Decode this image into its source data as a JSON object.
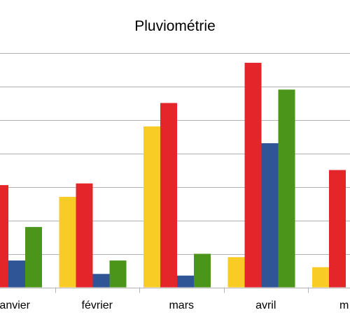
{
  "chart_data": {
    "type": "bar",
    "title": "Pluviométrie",
    "xlabel": "",
    "ylabel": "",
    "categories": [
      "janvier",
      "février",
      "mars",
      "avril",
      "mai"
    ],
    "tick_labels_visible": [
      "anvier",
      "février",
      "mars",
      "avril",
      "m"
    ],
    "ylim": [
      0,
      70
    ],
    "grid": true,
    "gridlines": [
      0,
      10,
      20,
      30,
      40,
      50,
      60,
      70
    ],
    "legend": "none",
    "series": [
      {
        "color": "#f8cb25",
        "values": [
          null,
          27,
          48,
          9,
          6
        ]
      },
      {
        "color": "#e4262b",
        "values": [
          30.5,
          31,
          55,
          67,
          35
        ]
      },
      {
        "color": "#2f5597",
        "values": [
          8,
          4,
          3.5,
          43,
          null
        ]
      },
      {
        "color": "#4b961a",
        "values": [
          18,
          8,
          10,
          59,
          null
        ]
      }
    ]
  }
}
